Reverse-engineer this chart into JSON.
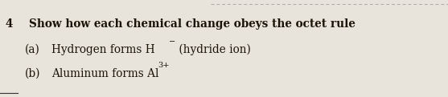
{
  "bg_color": "#e8e4db",
  "text_color": "#1a1508",
  "line1_number": "4",
  "line1_text": "Show how each chemical change obeys the octet rule",
  "line2_label": "(a)",
  "line2_text": "Hydrogen forms H",
  "line2_superscript": "−",
  "line2_extra": " (hydride ion)",
  "line3_label": "(b)",
  "line3_text": "Aluminum forms Al",
  "line3_superscript": "3+",
  "font_size_main": 9.8,
  "font_size_super": 7.0,
  "top_dashed_line_color": "#aaaaaa",
  "bottom_line_color": "#333333",
  "dpi": 100,
  "figw": 5.57,
  "figh": 1.21
}
